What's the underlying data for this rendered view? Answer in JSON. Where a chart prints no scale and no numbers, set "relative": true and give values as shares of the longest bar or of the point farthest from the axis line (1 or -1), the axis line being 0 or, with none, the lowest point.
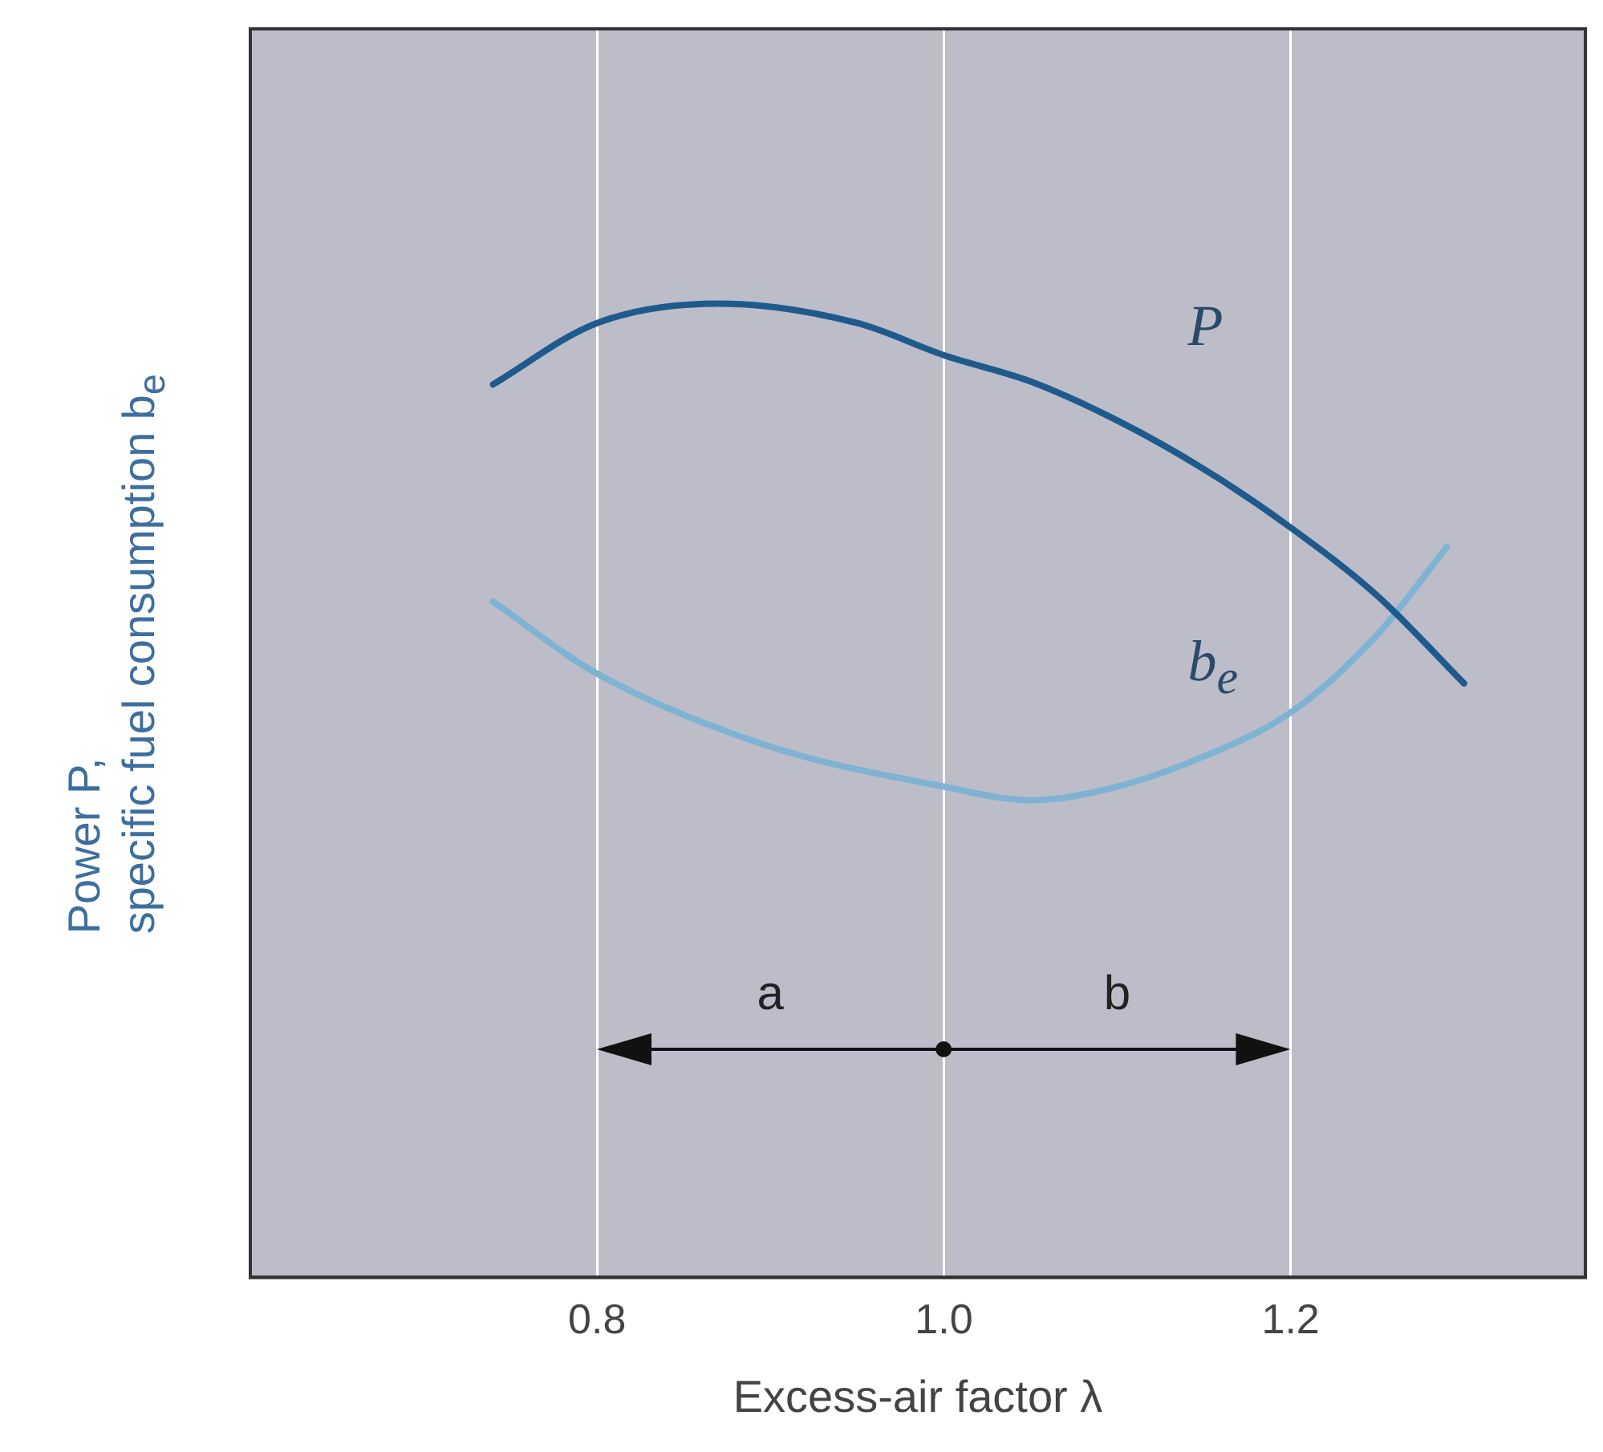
{
  "chart_data": {
    "type": "line",
    "xlabel": "Excess-air factor λ",
    "ylabel": "Power P,\nspecific fuel consumption b$_{e}$",
    "relative": true,
    "xlim": [
      0.6,
      1.37
    ],
    "xticks": [
      {
        "value": 0.8,
        "label": "0.8"
      },
      {
        "value": 1.0,
        "label": "1.0"
      },
      {
        "value": 1.2,
        "label": "1.2"
      }
    ],
    "grid": "x",
    "legend": false,
    "marker": "none",
    "line_style": "solid",
    "series": [
      {
        "name": "P",
        "color": "#1f5a8c",
        "x": [
          0.74,
          0.8,
          0.87,
          0.95,
          1.0,
          1.05,
          1.1,
          1.15,
          1.2,
          1.25,
          1.3
        ],
        "values": [
          0.917,
          0.98,
          1.0,
          0.98,
          0.947,
          0.92,
          0.88,
          0.83,
          0.77,
          0.7,
          0.61
        ]
      },
      {
        "name": "b$_{e}$",
        "color": "#7fb3d3",
        "x": [
          0.74,
          0.8,
          0.9,
          1.0,
          1.05,
          1.1,
          1.15,
          1.2,
          1.25,
          1.29
        ],
        "values": [
          0.694,
          0.62,
          0.545,
          0.504,
          0.49,
          0.504,
          0.535,
          0.58,
          0.66,
          0.75
        ]
      }
    ],
    "annotations": [
      "a",
      "b"
    ]
  }
}
